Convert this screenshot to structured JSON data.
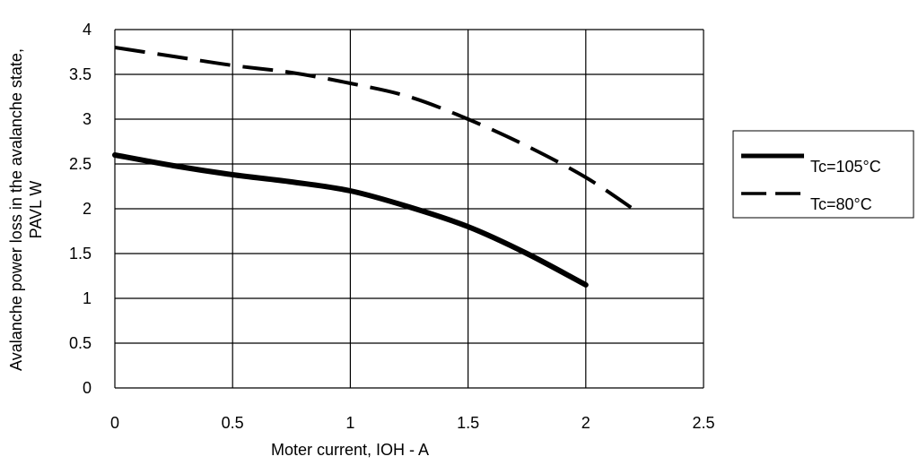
{
  "chart_data": {
    "type": "line",
    "title": "",
    "xlabel": "Moter current, IOH - A",
    "ylabel_lines": [
      "Avalanche power  loss in the avalanche state,",
      "PAVL W"
    ],
    "xlim": [
      0,
      2.5
    ],
    "ylim": [
      0,
      4
    ],
    "x_ticks": [
      "0",
      "0.5",
      "1",
      "1.5",
      "2",
      "2.5"
    ],
    "y_ticks": [
      "0",
      "0.5",
      "1",
      "1.5",
      "2",
      "2.5",
      "3",
      "3.5",
      "4"
    ],
    "grid": true,
    "legend_position": "right",
    "series": [
      {
        "name": "Tc=105°C",
        "style": "solid",
        "color": "#000000",
        "x": [
          0,
          0.25,
          0.5,
          0.75,
          1.0,
          1.25,
          1.5,
          1.75,
          2.0
        ],
        "y": [
          2.6,
          2.48,
          2.38,
          2.3,
          2.2,
          2.02,
          1.8,
          1.5,
          1.15
        ]
      },
      {
        "name": "Tc=80°C",
        "style": "dashed",
        "color": "#000000",
        "x": [
          0,
          0.25,
          0.5,
          0.75,
          1.0,
          1.25,
          1.5,
          1.75,
          2.0,
          2.2
        ],
        "y": [
          3.8,
          3.7,
          3.6,
          3.52,
          3.4,
          3.25,
          3.0,
          2.7,
          2.35,
          2.0
        ]
      }
    ]
  }
}
